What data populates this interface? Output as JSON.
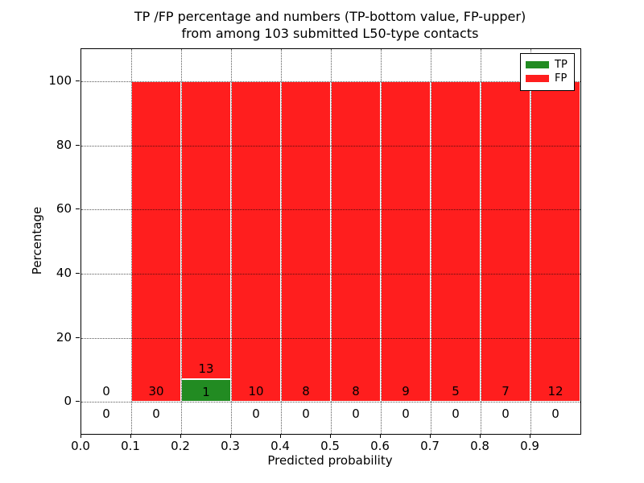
{
  "title": {
    "line1": "TP /FP percentage and numbers (TP-bottom value, FP-upper)",
    "line2": "from among 103 submitted L50-type contacts"
  },
  "axes": {
    "xlabel": "Predicted probability",
    "ylabel": "Percentage",
    "xtick_labels": [
      "0.0",
      "0.1",
      "0.2",
      "0.3",
      "0.4",
      "0.5",
      "0.6",
      "0.7",
      "0.8",
      "0.9"
    ],
    "ytick_labels": [
      "0",
      "20",
      "40",
      "60",
      "80",
      "100"
    ]
  },
  "legend": {
    "items": [
      {
        "label": "TP",
        "color": "#228B22"
      },
      {
        "label": "FP",
        "color": "#ff1e1e"
      }
    ]
  },
  "colors": {
    "tp_green": "#228B22",
    "fp_red": "#ff1e1e",
    "grid": "rgba(0,0,0,0.65)",
    "text": "#000000"
  },
  "chart_data": {
    "type": "bar",
    "stacked": true,
    "title": "TP /FP percentage and numbers (TP-bottom value, FP-upper) from among 103 submitted L50-type contacts",
    "xlabel": "Predicted probability",
    "ylabel": "Percentage",
    "xlim": [
      0.0,
      1.0
    ],
    "ylim": [
      -10,
      110
    ],
    "xticks": [
      0.0,
      0.1,
      0.2,
      0.3,
      0.4,
      0.5,
      0.6,
      0.7,
      0.8,
      0.9
    ],
    "yticks": [
      0,
      20,
      40,
      60,
      80,
      100
    ],
    "grid": true,
    "legend_position": "upper right",
    "total_contacts": 103,
    "bin_edges": [
      0.0,
      0.1,
      0.2,
      0.3,
      0.4,
      0.5,
      0.6,
      0.7,
      0.8,
      0.9,
      1.0
    ],
    "bin_labels": [
      "0.0-0.1",
      "0.1-0.2",
      "0.2-0.3",
      "0.3-0.4",
      "0.4-0.5",
      "0.5-0.6",
      "0.6-0.7",
      "0.7-0.8",
      "0.8-0.9",
      "0.9-1.0"
    ],
    "series": [
      {
        "name": "TP",
        "color": "#228B22",
        "counts": [
          0,
          0,
          1,
          0,
          0,
          0,
          0,
          0,
          0,
          0
        ],
        "percents": [
          0,
          0,
          7.14,
          0,
          0,
          0,
          0,
          0,
          0,
          0
        ]
      },
      {
        "name": "FP",
        "color": "#ff1e1e",
        "counts": [
          0,
          30,
          13,
          10,
          8,
          8,
          9,
          5,
          7,
          12
        ],
        "percents": [
          0,
          100,
          92.86,
          100,
          100,
          100,
          100,
          100,
          100,
          100
        ]
      }
    ]
  }
}
